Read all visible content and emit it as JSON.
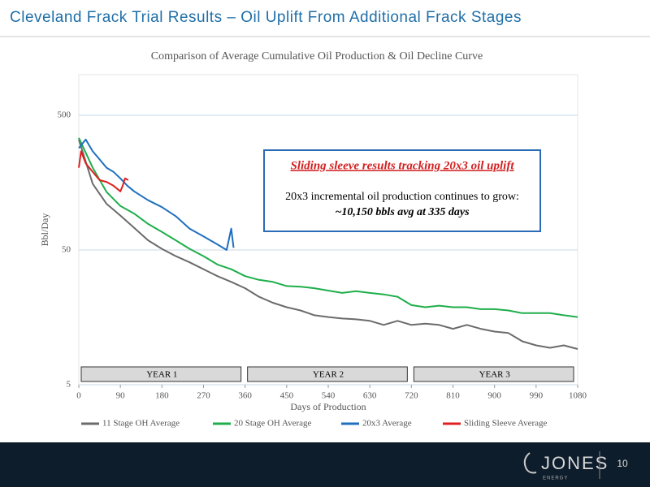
{
  "slide": {
    "title": "Cleveland Frack Trial Results – Oil Uplift From Additional Frack Stages",
    "logo": "JONES",
    "logo_sub": "ENERGY",
    "page_number": "10"
  },
  "chart_data": {
    "type": "line",
    "title": "Comparison of Average Cumulative Oil Production & Oil Decline Curve",
    "x_label": "Days of Production",
    "y_label": "Bbl/Day",
    "log_scale_y": true,
    "grid": true,
    "xlim": [
      0,
      1080
    ],
    "xticks": [
      0,
      90,
      180,
      270,
      360,
      450,
      540,
      630,
      720,
      810,
      900,
      990,
      1080
    ],
    "ylim": [
      5,
      1000
    ],
    "yticks": [
      5,
      50,
      500
    ],
    "periods": [
      "YEAR 1",
      "YEAR 2",
      "YEAR 3"
    ],
    "annotation": {
      "heading": "Sliding sleeve results tracking 20x3 oil uplift",
      "text": "20x3 incremental oil production continues to grow:",
      "highlight": "~10,150 bbls avg at 335 days"
    },
    "legend": "bottom",
    "series": [
      {
        "name": "11 Stage OH Average",
        "color": "#6b6b6b",
        "x": [
          0,
          30,
          60,
          90,
          120,
          150,
          180,
          210,
          240,
          270,
          300,
          330,
          360,
          390,
          420,
          450,
          480,
          510,
          540,
          570,
          600,
          630,
          660,
          690,
          720,
          750,
          780,
          810,
          840,
          870,
          900,
          930,
          960,
          990,
          1020,
          1050,
          1080
        ],
        "values": [
          330,
          155,
          110,
          90,
          73,
          59,
          51,
          45,
          40.5,
          36,
          32,
          29,
          26,
          22.5,
          20.3,
          18.8,
          17.8,
          16.4,
          15.9,
          15.5,
          15.3,
          14.9,
          13.9,
          14.9,
          13.9,
          14.2,
          13.9,
          13,
          13.9,
          13,
          12.4,
          12.1,
          10.5,
          9.8,
          9.4,
          9.8,
          9.2
        ]
      },
      {
        "name": "20 Stage OH Average",
        "color": "#1fae4b",
        "x": [
          0,
          30,
          60,
          90,
          120,
          150,
          180,
          210,
          240,
          270,
          300,
          330,
          360,
          390,
          420,
          450,
          480,
          510,
          540,
          570,
          600,
          630,
          660,
          690,
          720,
          750,
          780,
          810,
          840,
          870,
          900,
          930,
          960,
          990,
          1020,
          1050,
          1080
        ],
        "values": [
          340,
          204,
          135,
          106,
          93,
          78,
          68,
          59,
          51,
          45,
          39,
          36,
          32,
          30,
          29,
          27,
          26.7,
          26,
          25,
          24,
          24.7,
          24,
          23.4,
          22.5,
          19.5,
          18.8,
          19.3,
          18.8,
          18.8,
          18.2,
          18.2,
          17.8,
          17,
          17,
          17,
          16.4,
          15.9
        ]
      },
      {
        "name": "20x3 Average",
        "color": "#1f6fbf",
        "x": [
          0,
          15,
          30,
          45,
          60,
          75,
          90,
          105,
          120,
          150,
          180,
          210,
          240,
          270,
          300,
          320,
          330,
          335
        ],
        "values": [
          285,
          330,
          270,
          235,
          204,
          190,
          170,
          150,
          136,
          117,
          104,
          89,
          72,
          63,
          55,
          50,
          72,
          52
        ]
      },
      {
        "name": "Sliding Sleeve Average",
        "color": "#e02020",
        "x": [
          0,
          5,
          15,
          30,
          45,
          60,
          75,
          90,
          95,
          100,
          107
        ],
        "values": [
          204,
          270,
          220,
          190,
          165,
          160,
          150,
          136,
          150,
          170,
          165
        ]
      }
    ]
  }
}
